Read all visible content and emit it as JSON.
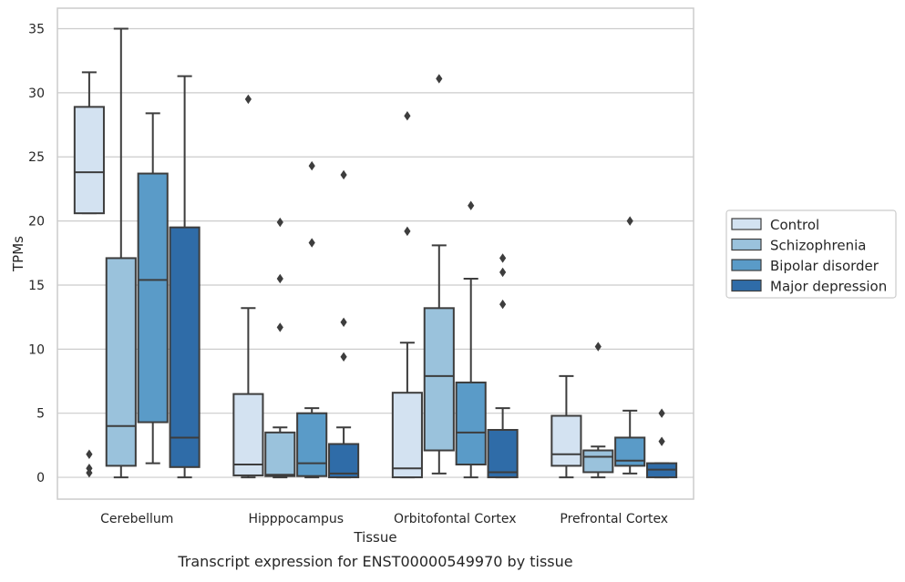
{
  "chart_data": {
    "type": "box",
    "title": "",
    "caption": "Transcript expression for ENST00000549970 by tissue",
    "xlabel": "Tissue",
    "ylabel": "TPMs",
    "ylim": [
      -1.7,
      36.6
    ],
    "yticks": [
      0,
      5,
      10,
      15,
      20,
      25,
      30,
      35
    ],
    "grid": "horizontal",
    "legend_position": "right",
    "categories": [
      "Cerebellum",
      "Hipppocampus",
      "Orbitofontal Cortex",
      "Prefrontal Cortex"
    ],
    "series": [
      {
        "name": "Control",
        "color": "#d3e2f1",
        "boxes": [
          {
            "whislo": 20.6,
            "q1": 20.6,
            "med": 23.8,
            "q3": 28.9,
            "whishi": 31.6,
            "fliers": [
              1.8,
              0.7,
              0.35
            ]
          },
          {
            "whislo": 0.0,
            "q1": 0.15,
            "med": 1.0,
            "q3": 6.5,
            "whishi": 13.2,
            "fliers": [
              29.5
            ]
          },
          {
            "whislo": 0.0,
            "q1": 0.0,
            "med": 0.7,
            "q3": 6.6,
            "whishi": 10.5,
            "fliers": [
              28.2,
              19.2
            ]
          },
          {
            "whislo": 0.0,
            "q1": 0.9,
            "med": 1.8,
            "q3": 4.8,
            "whishi": 7.9,
            "fliers": []
          }
        ]
      },
      {
        "name": "Schizophrenia",
        "color": "#9ac2dc",
        "boxes": [
          {
            "whislo": 0.0,
            "q1": 0.9,
            "med": 4.0,
            "q3": 17.1,
            "whishi": 35.0,
            "fliers": []
          },
          {
            "whislo": 0.0,
            "q1": 0.1,
            "med": 0.2,
            "q3": 3.5,
            "whishi": 3.9,
            "fliers": [
              19.9,
              15.5,
              11.7
            ]
          },
          {
            "whislo": 0.3,
            "q1": 2.1,
            "med": 7.9,
            "q3": 13.2,
            "whishi": 18.1,
            "fliers": [
              31.1
            ]
          },
          {
            "whislo": 0.0,
            "q1": 0.4,
            "med": 1.6,
            "q3": 2.1,
            "whishi": 2.4,
            "fliers": [
              10.2
            ]
          }
        ]
      },
      {
        "name": "Bipolar disorder",
        "color": "#5a9bc8",
        "boxes": [
          {
            "whislo": 1.1,
            "q1": 4.3,
            "med": 15.4,
            "q3": 23.7,
            "whishi": 28.4,
            "fliers": []
          },
          {
            "whislo": 0.0,
            "q1": 0.1,
            "med": 1.1,
            "q3": 5.0,
            "whishi": 5.4,
            "fliers": [
              24.3,
              18.3
            ]
          },
          {
            "whislo": 0.0,
            "q1": 1.0,
            "med": 3.5,
            "q3": 7.4,
            "whishi": 15.5,
            "fliers": [
              21.2
            ]
          },
          {
            "whislo": 0.3,
            "q1": 0.9,
            "med": 1.3,
            "q3": 3.1,
            "whishi": 5.2,
            "fliers": [
              20.0
            ]
          }
        ]
      },
      {
        "name": "Major depression",
        "color": "#2f6ca8",
        "boxes": [
          {
            "whislo": 0.0,
            "q1": 0.8,
            "med": 3.1,
            "q3": 19.5,
            "whishi": 31.3,
            "fliers": []
          },
          {
            "whislo": 0.0,
            "q1": 0.0,
            "med": 0.3,
            "q3": 2.6,
            "whishi": 3.9,
            "fliers": [
              23.6,
              12.1,
              9.4
            ]
          },
          {
            "whislo": 0.0,
            "q1": 0.0,
            "med": 0.4,
            "q3": 3.7,
            "whishi": 5.4,
            "fliers": [
              17.1,
              16.0,
              13.5
            ]
          },
          {
            "whislo": 0.0,
            "q1": 0.0,
            "med": 0.6,
            "q3": 1.1,
            "whishi": 1.1,
            "fliers": [
              5.0,
              2.8
            ]
          }
        ]
      }
    ]
  }
}
